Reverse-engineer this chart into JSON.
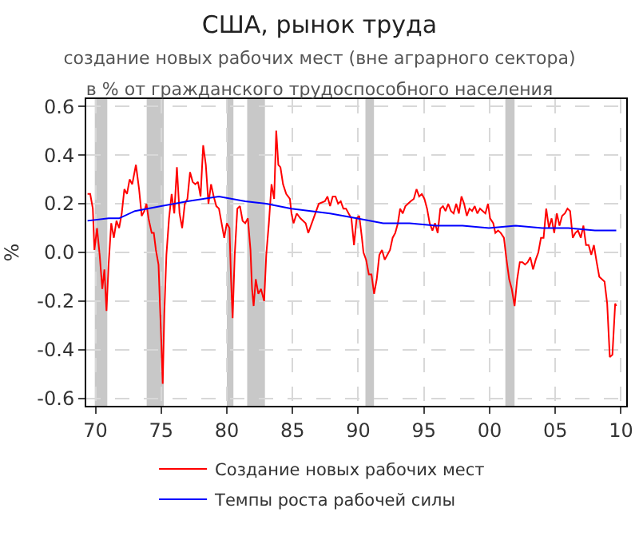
{
  "chart_data": {
    "type": "line",
    "title": "США, рынок труда",
    "subtitle": "создание новых рабочих мест (вне аграрного сектора)\nв % от гражданского трудоспособного населения",
    "ylabel": "%",
    "xlim": [
      1969.3,
      2010.4
    ],
    "ylim": [
      -0.63,
      0.63
    ],
    "xticks": [
      {
        "value": 1970,
        "label": "70"
      },
      {
        "value": 1975,
        "label": "75"
      },
      {
        "value": 1980,
        "label": "80"
      },
      {
        "value": 1985,
        "label": "85"
      },
      {
        "value": 1990,
        "label": "90"
      },
      {
        "value": 1995,
        "label": "95"
      },
      {
        "value": 2000,
        "label": "00"
      },
      {
        "value": 2005,
        "label": "05"
      },
      {
        "value": 2010,
        "label": "10"
      }
    ],
    "yticks": [
      -0.6,
      -0.4,
      -0.2,
      {
        "value": 0,
        "label": "0.0"
      },
      0.2,
      0.4,
      0.6
    ],
    "grid": true,
    "legend": "bottom",
    "line_style": "solid",
    "marker": "none",
    "bands": [
      {
        "axis": "x",
        "from": 1969.95,
        "to": 1970.9,
        "color": "#c8c8c8"
      },
      {
        "axis": "x",
        "from": 1973.9,
        "to": 1975.2,
        "color": "#c8c8c8"
      },
      {
        "axis": "x",
        "from": 1980.0,
        "to": 1980.5,
        "color": "#c8c8c8"
      },
      {
        "axis": "x",
        "from": 1981.55,
        "to": 1982.9,
        "color": "#c8c8c8"
      },
      {
        "axis": "x",
        "from": 1990.55,
        "to": 1991.2,
        "color": "#c8c8c8"
      },
      {
        "axis": "x",
        "from": 2001.2,
        "to": 2001.9,
        "color": "#c8c8c8"
      }
    ],
    "series": [
      {
        "name": "Создание новых рабочих мест",
        "color": "#ff0000",
        "x": [
          1969.4,
          1969.6,
          1969.8,
          1969.92,
          1970.12,
          1970.32,
          1970.52,
          1970.68,
          1970.84,
          1971.0,
          1971.2,
          1971.4,
          1971.6,
          1971.8,
          1972.0,
          1972.2,
          1972.4,
          1972.6,
          1972.8,
          1973.08,
          1973.32,
          1973.52,
          1973.72,
          1973.88,
          1974.04,
          1974.28,
          1974.44,
          1974.6,
          1974.8,
          1975.0,
          1975.12,
          1975.24,
          1975.4,
          1975.6,
          1975.8,
          1976.0,
          1976.2,
          1976.4,
          1976.6,
          1976.8,
          1977.0,
          1977.2,
          1977.4,
          1977.6,
          1977.8,
          1978.0,
          1978.2,
          1978.4,
          1978.6,
          1978.8,
          1979.0,
          1979.2,
          1979.4,
          1979.6,
          1979.8,
          1980.0,
          1980.2,
          1980.32,
          1980.44,
          1980.6,
          1980.8,
          1981.0,
          1981.2,
          1981.4,
          1981.6,
          1981.8,
          1981.92,
          1982.04,
          1982.2,
          1982.4,
          1982.6,
          1982.84,
          1983.0,
          1983.2,
          1983.4,
          1983.6,
          1983.76,
          1983.92,
          1984.08,
          1984.28,
          1984.52,
          1984.8,
          1984.92,
          1985.08,
          1985.32,
          1985.6,
          1986.0,
          1986.2,
          1986.6,
          1987.0,
          1987.46,
          1987.66,
          1987.86,
          1988.06,
          1988.27,
          1988.47,
          1988.67,
          1988.87,
          1989.07,
          1989.27,
          1989.48,
          1989.68,
          1989.88,
          1990.08,
          1990.28,
          1990.4,
          1990.6,
          1990.81,
          1991.01,
          1991.21,
          1991.41,
          1991.61,
          1991.81,
          1992.02,
          1992.22,
          1992.42,
          1992.62,
          1992.82,
          1993.02,
          1993.19,
          1993.39,
          1993.59,
          1993.79,
          1993.99,
          1994.23,
          1994.44,
          1994.64,
          1994.84,
          1995.04,
          1995.24,
          1995.44,
          1995.65,
          1995.85,
          1996.05,
          1996.25,
          1996.45,
          1996.65,
          1996.85,
          1997.06,
          1997.26,
          1997.46,
          1997.66,
          1997.86,
          1998.06,
          1998.27,
          1998.47,
          1998.67,
          1998.87,
          1999.07,
          1999.27,
          1999.48,
          1999.68,
          1999.88,
          2000.04,
          2000.28,
          2000.44,
          2000.65,
          2000.85,
          2001.09,
          2001.29,
          2001.49,
          2001.69,
          2001.9,
          2002.1,
          2002.3,
          2002.5,
          2002.7,
          2002.9,
          2003.1,
          2003.31,
          2003.51,
          2003.71,
          2003.91,
          2004.11,
          2004.31,
          2004.52,
          2004.72,
          2004.92,
          2005.12,
          2005.32,
          2005.52,
          2005.73,
          2005.93,
          2006.13,
          2006.33,
          2006.53,
          2006.73,
          2006.94,
          2007.14,
          2007.34,
          2007.54,
          2007.74,
          2007.94,
          2008.15,
          2008.35,
          2008.55,
          2008.75,
          2008.95,
          2009.15,
          2009.35,
          2009.56,
          2009.64
        ],
        "values": [
          0.24,
          0.24,
          0.18,
          0.01,
          0.1,
          -0.01,
          -0.15,
          -0.07,
          -0.24,
          -0.05,
          0.12,
          0.06,
          0.13,
          0.1,
          0.16,
          0.26,
          0.24,
          0.3,
          0.28,
          0.36,
          0.26,
          0.15,
          0.17,
          0.2,
          0.14,
          0.08,
          0.08,
          0.01,
          -0.05,
          -0.35,
          -0.54,
          -0.25,
          -0.01,
          0.14,
          0.24,
          0.16,
          0.35,
          0.16,
          0.1,
          0.2,
          0.22,
          0.33,
          0.29,
          0.28,
          0.29,
          0.23,
          0.44,
          0.36,
          0.2,
          0.28,
          0.23,
          0.19,
          0.18,
          0.12,
          0.06,
          0.12,
          0.1,
          -0.11,
          -0.27,
          -0.01,
          0.18,
          0.19,
          0.13,
          0.12,
          0.14,
          0.01,
          -0.15,
          -0.22,
          -0.11,
          -0.17,
          -0.15,
          -0.2,
          -0.01,
          0.12,
          0.28,
          0.22,
          0.5,
          0.36,
          0.35,
          0.28,
          0.24,
          0.22,
          0.16,
          0.12,
          0.16,
          0.14,
          0.12,
          0.08,
          0.14,
          0.2,
          0.21,
          0.23,
          0.19,
          0.23,
          0.23,
          0.2,
          0.21,
          0.18,
          0.18,
          0.16,
          0.14,
          0.03,
          0.14,
          0.15,
          0.06,
          0.0,
          -0.03,
          -0.09,
          -0.09,
          -0.17,
          -0.11,
          -0.01,
          0.01,
          -0.03,
          -0.01,
          0.01,
          0.06,
          0.08,
          0.12,
          0.18,
          0.16,
          0.19,
          0.2,
          0.21,
          0.22,
          0.26,
          0.23,
          0.24,
          0.22,
          0.18,
          0.12,
          0.09,
          0.12,
          0.08,
          0.18,
          0.19,
          0.17,
          0.2,
          0.17,
          0.16,
          0.2,
          0.16,
          0.23,
          0.2,
          0.15,
          0.18,
          0.17,
          0.19,
          0.16,
          0.18,
          0.17,
          0.16,
          0.2,
          0.14,
          0.12,
          0.08,
          0.09,
          0.08,
          0.06,
          -0.03,
          -0.11,
          -0.15,
          -0.22,
          -0.11,
          -0.04,
          -0.04,
          -0.05,
          -0.04,
          -0.02,
          -0.07,
          -0.03,
          0.0,
          0.06,
          0.06,
          0.18,
          0.1,
          0.14,
          0.08,
          0.16,
          0.11,
          0.15,
          0.16,
          0.18,
          0.17,
          0.06,
          0.08,
          0.09,
          0.06,
          0.11,
          0.03,
          0.03,
          -0.01,
          0.03,
          -0.04,
          -0.1,
          -0.11,
          -0.12,
          -0.21,
          -0.43,
          -0.42,
          -0.21,
          -0.22
        ]
      },
      {
        "name": "Темпы роста рабочей силы",
        "color": "#0000ff",
        "x": [
          1969.4,
          1971.0,
          1971.8,
          1973.0,
          1975.0,
          1977.0,
          1979.4,
          1981.4,
          1983.0,
          1984.92,
          1987.86,
          1989.88,
          1991.9,
          1993.91,
          1995.93,
          1997.94,
          1999.96,
          2001.98,
          2004.0,
          2006.0,
          2008.02,
          2009.64
        ],
        "values": [
          0.13,
          0.14,
          0.14,
          0.17,
          0.19,
          0.21,
          0.23,
          0.21,
          0.2,
          0.18,
          0.16,
          0.14,
          0.12,
          0.12,
          0.11,
          0.11,
          0.1,
          0.11,
          0.1,
          0.1,
          0.09,
          0.09
        ]
      }
    ]
  }
}
